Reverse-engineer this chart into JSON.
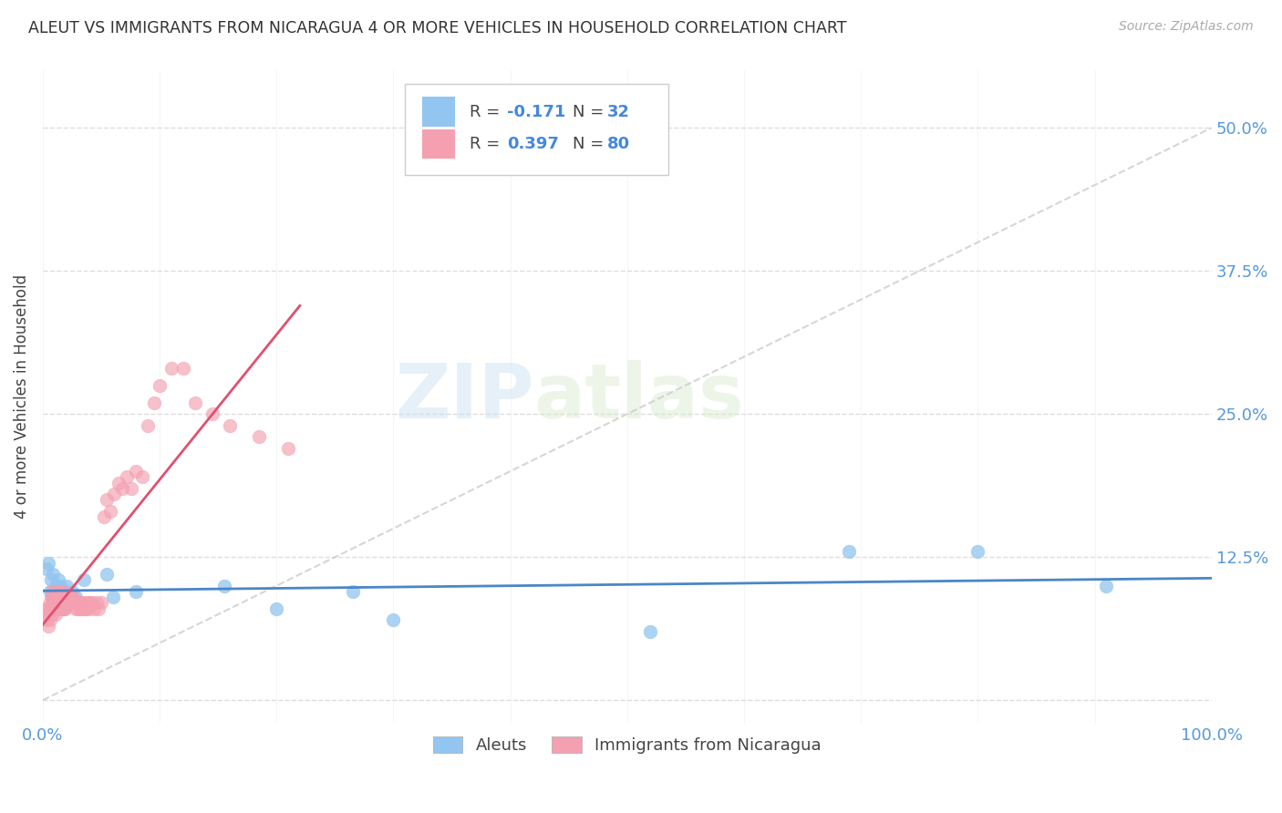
{
  "title": "ALEUT VS IMMIGRANTS FROM NICARAGUA 4 OR MORE VEHICLES IN HOUSEHOLD CORRELATION CHART",
  "source": "Source: ZipAtlas.com",
  "ylabel": "4 or more Vehicles in Household",
  "xlim": [
    0.0,
    1.0
  ],
  "ylim": [
    -0.02,
    0.55
  ],
  "yticks": [
    0.0,
    0.125,
    0.25,
    0.375,
    0.5
  ],
  "ytick_labels": [
    "",
    "12.5%",
    "25.0%",
    "37.5%",
    "50.0%"
  ],
  "xticks": [
    0.0,
    0.1,
    0.2,
    0.3,
    0.4,
    0.5,
    0.6,
    0.7,
    0.8,
    0.9,
    1.0
  ],
  "aleut_R": -0.171,
  "aleut_N": 32,
  "nicaragua_R": 0.397,
  "nicaragua_N": 80,
  "aleut_color": "#92C5F0",
  "nicaragua_color": "#F4A0B0",
  "legend_aleut_label": "Aleuts",
  "legend_nicaragua_label": "Immigrants from Nicaragua",
  "watermark_zip": "ZIP",
  "watermark_atlas": "atlas",
  "aleut_x": [
    0.003,
    0.005,
    0.006,
    0.007,
    0.008,
    0.009,
    0.01,
    0.011,
    0.012,
    0.013,
    0.014,
    0.015,
    0.016,
    0.017,
    0.018,
    0.019,
    0.02,
    0.022,
    0.025,
    0.028,
    0.035,
    0.055,
    0.06,
    0.08,
    0.155,
    0.2,
    0.265,
    0.3,
    0.52,
    0.69,
    0.8,
    0.91
  ],
  "aleut_y": [
    0.115,
    0.12,
    0.095,
    0.105,
    0.09,
    0.11,
    0.085,
    0.1,
    0.095,
    0.105,
    0.09,
    0.1,
    0.085,
    0.095,
    0.08,
    0.095,
    0.1,
    0.09,
    0.095,
    0.09,
    0.105,
    0.11,
    0.09,
    0.095,
    0.1,
    0.08,
    0.095,
    0.07,
    0.06,
    0.13,
    0.13,
    0.1
  ],
  "nicaragua_x": [
    0.002,
    0.003,
    0.004,
    0.005,
    0.005,
    0.006,
    0.006,
    0.007,
    0.007,
    0.008,
    0.008,
    0.009,
    0.009,
    0.01,
    0.01,
    0.011,
    0.011,
    0.012,
    0.012,
    0.013,
    0.013,
    0.014,
    0.014,
    0.015,
    0.015,
    0.016,
    0.016,
    0.017,
    0.017,
    0.018,
    0.018,
    0.019,
    0.019,
    0.02,
    0.02,
    0.021,
    0.022,
    0.023,
    0.024,
    0.025,
    0.026,
    0.027,
    0.028,
    0.029,
    0.03,
    0.031,
    0.032,
    0.033,
    0.034,
    0.035,
    0.036,
    0.037,
    0.038,
    0.039,
    0.04,
    0.042,
    0.044,
    0.046,
    0.048,
    0.05,
    0.052,
    0.055,
    0.058,
    0.061,
    0.065,
    0.068,
    0.072,
    0.076,
    0.08,
    0.085,
    0.09,
    0.095,
    0.1,
    0.11,
    0.12,
    0.13,
    0.145,
    0.16,
    0.185,
    0.21
  ],
  "nicaragua_y": [
    0.08,
    0.07,
    0.075,
    0.065,
    0.08,
    0.085,
    0.07,
    0.09,
    0.08,
    0.095,
    0.075,
    0.085,
    0.09,
    0.08,
    0.095,
    0.075,
    0.085,
    0.08,
    0.09,
    0.085,
    0.095,
    0.08,
    0.09,
    0.085,
    0.095,
    0.08,
    0.09,
    0.085,
    0.09,
    0.08,
    0.095,
    0.08,
    0.09,
    0.085,
    0.09,
    0.085,
    0.09,
    0.085,
    0.09,
    0.085,
    0.09,
    0.085,
    0.08,
    0.085,
    0.08,
    0.085,
    0.08,
    0.085,
    0.08,
    0.085,
    0.08,
    0.08,
    0.085,
    0.08,
    0.085,
    0.085,
    0.08,
    0.085,
    0.08,
    0.085,
    0.16,
    0.175,
    0.165,
    0.18,
    0.19,
    0.185,
    0.195,
    0.185,
    0.2,
    0.195,
    0.24,
    0.26,
    0.275,
    0.29,
    0.29,
    0.26,
    0.25,
    0.24,
    0.23,
    0.22
  ],
  "diag_line_x": [
    0.0,
    1.0
  ],
  "diag_line_y": [
    0.0,
    0.5
  ]
}
